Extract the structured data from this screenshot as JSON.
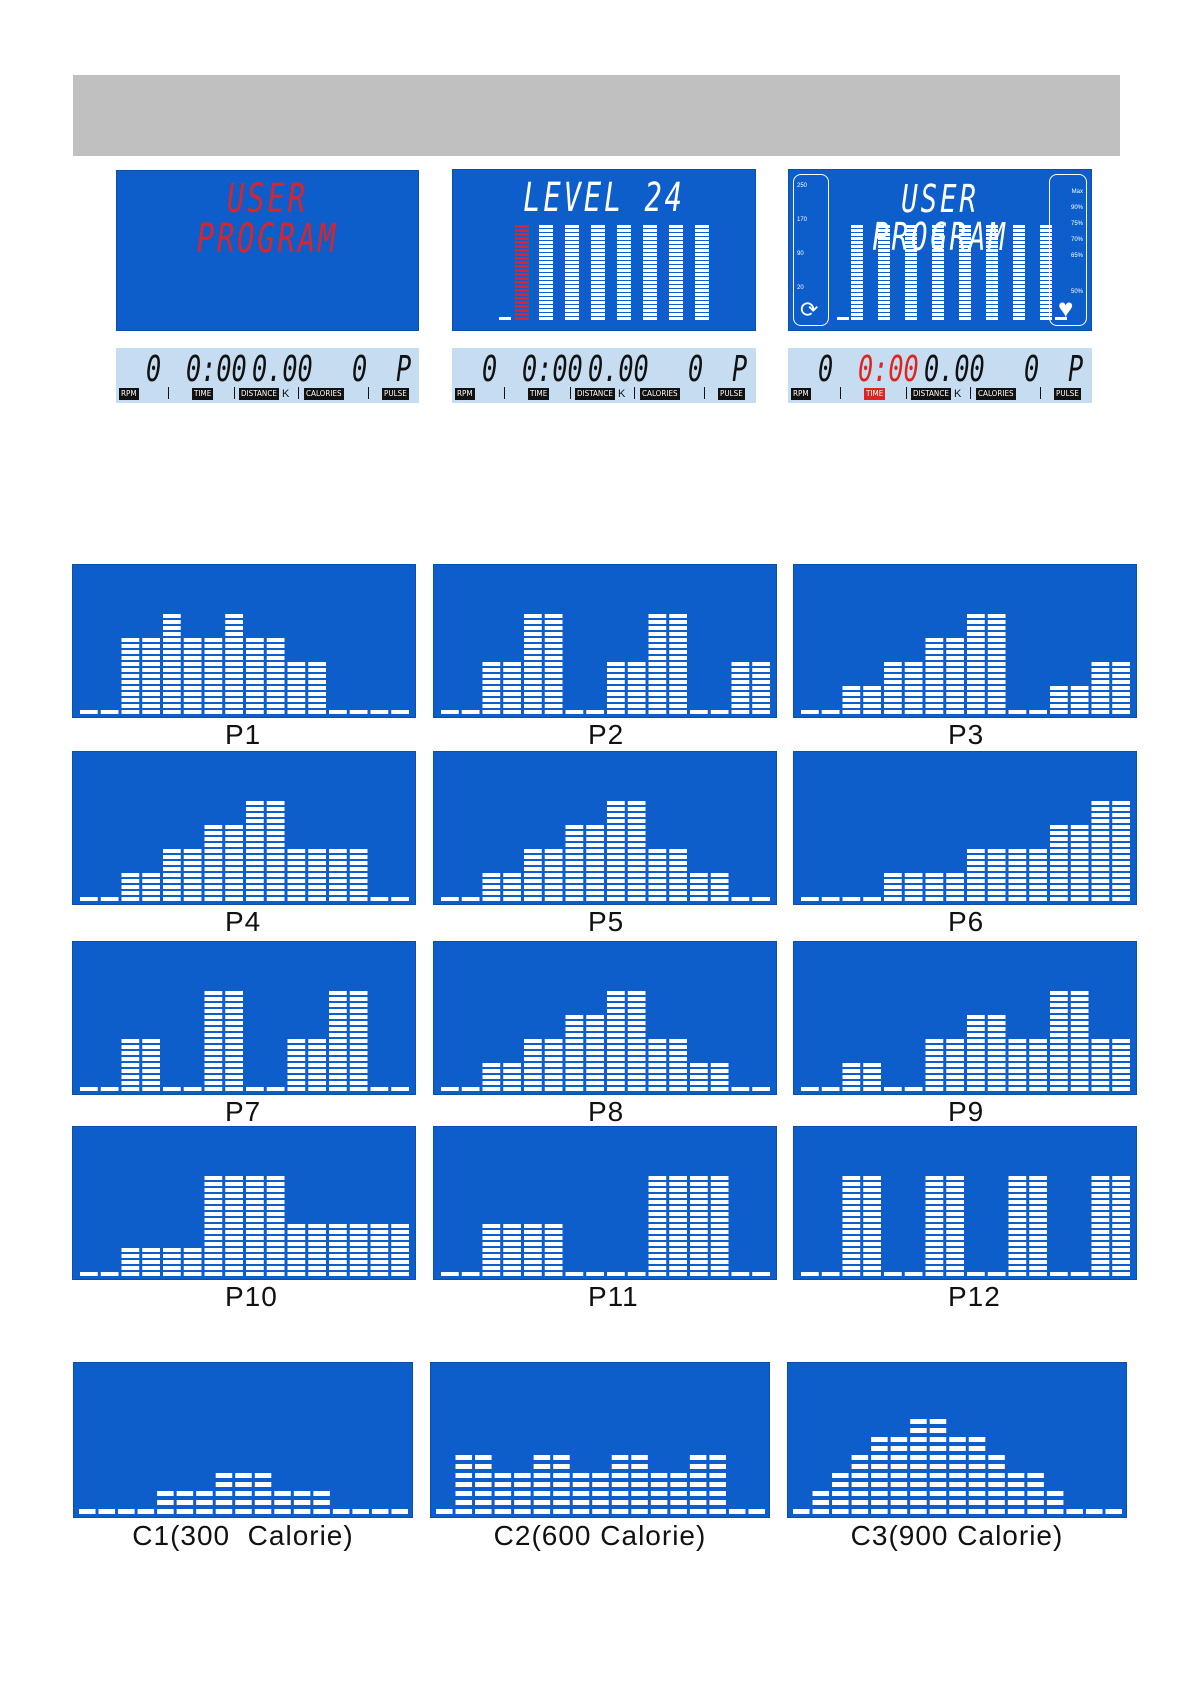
{
  "colors": {
    "screen": "#0d5ecb",
    "segment": "#ffffff",
    "active_segment": "#d9252a",
    "strip": "#c6dcf1"
  },
  "top_displays": [
    {
      "title": "USER PROGRAM",
      "title_color": "red",
      "bars": []
    },
    {
      "title": "LEVEL 24",
      "title_color": "white",
      "bars": [
        0,
        24,
        24,
        24,
        24,
        24,
        24,
        24,
        24
      ],
      "highlight_index": 1
    },
    {
      "title": "USER PROGRAM",
      "title_color": "white",
      "bars": [
        0,
        24,
        24,
        24,
        24,
        24,
        24,
        24,
        24,
        0
      ],
      "left_scale": [
        "250",
        "170",
        "90",
        "20"
      ],
      "right_scale": [
        "Max",
        "90%",
        "75%",
        "70%",
        "65%",
        "50%"
      ],
      "left_icon": "rpm-gauge-icon",
      "right_icon": "heart-icon"
    }
  ],
  "strips": [
    {
      "rpm": "0",
      "time": "0:00",
      "distance": "0.00",
      "calories": "0",
      "pulse": "P",
      "time_highlight": false
    },
    {
      "rpm": "0",
      "time": "0:00",
      "distance": "0.00",
      "calories": "0",
      "pulse": "P",
      "time_highlight": false
    },
    {
      "rpm": "0",
      "time": "0:00",
      "distance": "0.00",
      "calories": "0",
      "pulse": "P",
      "time_highlight": true
    }
  ],
  "strip_labels": {
    "rpm": "RPM",
    "time": "TIME",
    "distance": "DISTANCE",
    "k": "K",
    "calories": "CALORIES",
    "pulse": "PULSE"
  },
  "profiles": [
    {
      "label": "P1",
      "levels": [
        1,
        1,
        4,
        4,
        5,
        4,
        4,
        5,
        4,
        4,
        3,
        3,
        1,
        1,
        1,
        1
      ]
    },
    {
      "label": "P2",
      "levels": [
        1,
        1,
        3,
        3,
        5,
        5,
        1,
        1,
        3,
        3,
        5,
        5,
        1,
        1,
        3,
        3
      ]
    },
    {
      "label": "P3",
      "levels": [
        1,
        1,
        2,
        2,
        3,
        3,
        4,
        4,
        5,
        5,
        1,
        1,
        2,
        2,
        3,
        3
      ]
    },
    {
      "label": "P4",
      "levels": [
        1,
        1,
        2,
        2,
        3,
        3,
        4,
        4,
        5,
        5,
        3,
        3,
        3,
        3,
        1,
        1
      ]
    },
    {
      "label": "P5",
      "levels": [
        1,
        1,
        2,
        2,
        3,
        3,
        4,
        4,
        5,
        5,
        3,
        3,
        2,
        2,
        1,
        1
      ]
    },
    {
      "label": "P6",
      "levels": [
        1,
        1,
        1,
        1,
        2,
        2,
        2,
        2,
        3,
        3,
        3,
        3,
        4,
        4,
        5,
        5
      ]
    },
    {
      "label": "P7",
      "levels": [
        1,
        1,
        3,
        3,
        1,
        1,
        5,
        5,
        1,
        1,
        3,
        3,
        5,
        5,
        1,
        1
      ]
    },
    {
      "label": "P8",
      "levels": [
        1,
        1,
        2,
        2,
        3,
        3,
        4,
        4,
        5,
        5,
        3,
        3,
        2,
        2,
        1,
        1
      ]
    },
    {
      "label": "P9",
      "levels": [
        1,
        1,
        2,
        2,
        1,
        1,
        3,
        3,
        4,
        4,
        3,
        3,
        5,
        5,
        3,
        3
      ]
    },
    {
      "label": "P10",
      "levels": [
        1,
        1,
        2,
        2,
        2,
        2,
        5,
        5,
        5,
        5,
        3,
        3,
        3,
        3,
        3,
        3
      ]
    },
    {
      "label": "P11",
      "levels": [
        1,
        1,
        3,
        3,
        3,
        3,
        1,
        1,
        1,
        1,
        5,
        5,
        5,
        5,
        1,
        1
      ]
    },
    {
      "label": "P12",
      "levels": [
        1,
        1,
        5,
        5,
        1,
        1,
        5,
        5,
        1,
        1,
        5,
        5,
        1,
        1,
        5,
        5
      ]
    }
  ],
  "calorie_profiles": [
    {
      "label": "C1(300  Calorie)",
      "levels": [
        1,
        1,
        1,
        1,
        2,
        2,
        2,
        3,
        3,
        3,
        2,
        2,
        2,
        1,
        1,
        1,
        1
      ]
    },
    {
      "label": "C2(600 Calorie)",
      "levels": [
        1,
        4,
        4,
        3,
        3,
        4,
        4,
        3,
        3,
        4,
        4,
        3,
        3,
        4,
        4,
        1,
        1
      ]
    },
    {
      "label": "C3(900 Calorie)",
      "levels": [
        1,
        2,
        3,
        4,
        5,
        5,
        6,
        6,
        5,
        5,
        4,
        3,
        3,
        2,
        1,
        1,
        1
      ]
    }
  ]
}
